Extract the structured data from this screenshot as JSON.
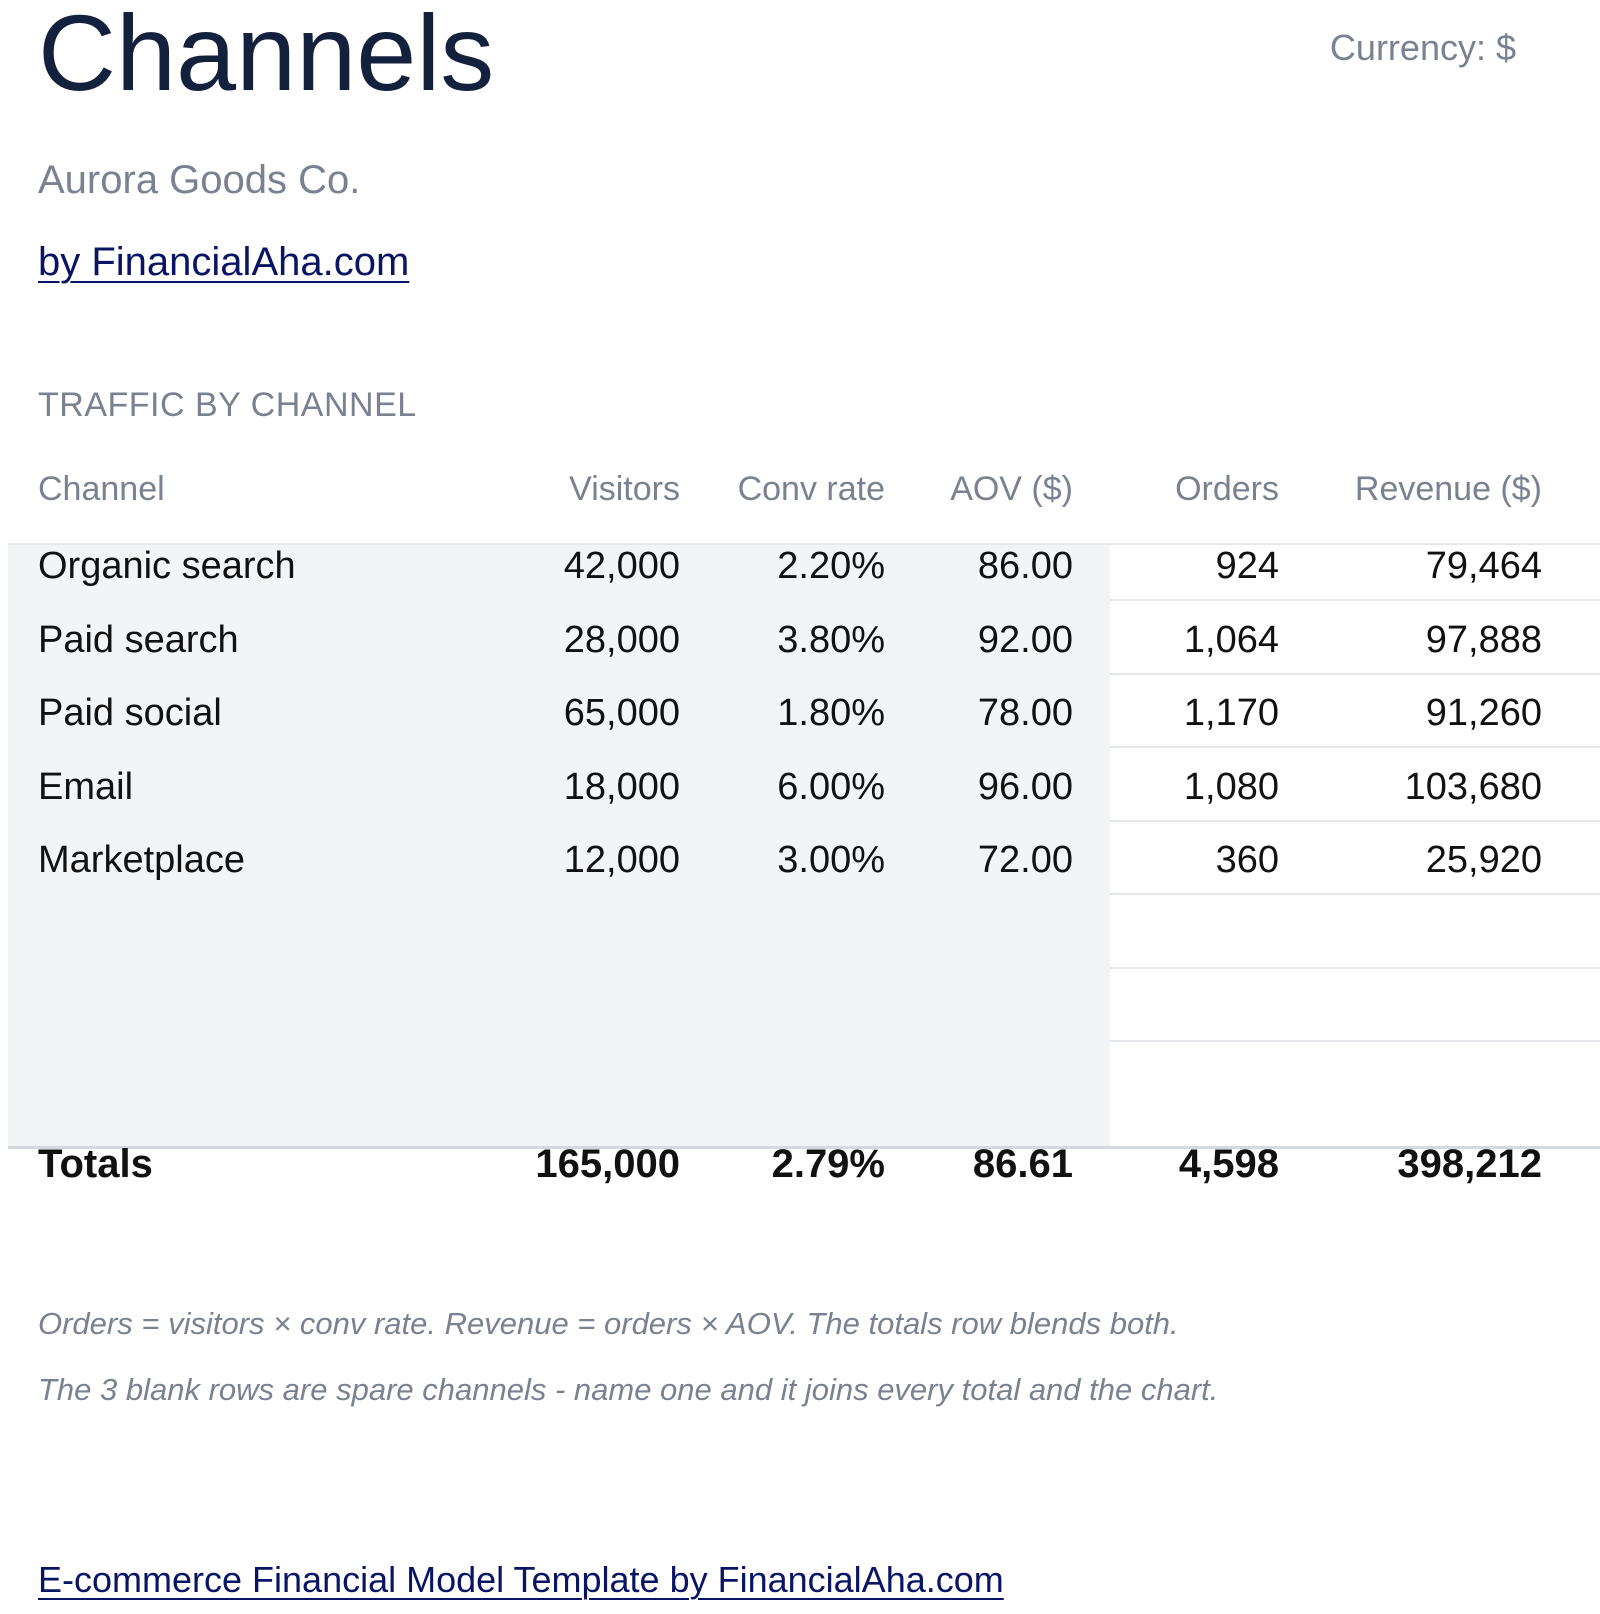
{
  "header": {
    "title": "Channels",
    "currency": "Currency: $",
    "company": "Aurora Goods Co.",
    "byline": "by FinancialAha.com"
  },
  "section_title": "TRAFFIC BY CHANNEL",
  "table": {
    "columns": [
      "Channel",
      "Visitors",
      "Conv rate",
      "AOV ($)",
      "Orders",
      "Revenue ($)"
    ],
    "rows": [
      [
        "Organic search",
        "42,000",
        "2.20%",
        "86.00",
        "924",
        "79,464"
      ],
      [
        "Paid search",
        "28,000",
        "3.80%",
        "92.00",
        "1,064",
        "97,888"
      ],
      [
        "Paid social",
        "65,000",
        "1.80%",
        "78.00",
        "1,170",
        "91,260"
      ],
      [
        "Email",
        "18,000",
        "6.00%",
        "96.00",
        "1,080",
        "103,680"
      ],
      [
        "Marketplace",
        "12,000",
        "3.00%",
        "72.00",
        "360",
        "25,920"
      ],
      [
        "",
        "",
        "",
        "",
        "",
        ""
      ],
      [
        "",
        "",
        "",
        "",
        "",
        ""
      ],
      [
        "",
        "",
        "",
        "",
        "",
        ""
      ]
    ],
    "totals": [
      "Totals",
      "165,000",
      "2.79%",
      "86.61",
      "4,598",
      "398,212"
    ]
  },
  "notes": [
    "Orders = visitors × conv rate. Revenue = orders × AOV. The totals row blends both.",
    "The 3 blank rows are spare channels - name one and it joins every total and the chart."
  ],
  "footer": {
    "link": "E-commerce Financial Model Template by FinancialAha.com"
  }
}
